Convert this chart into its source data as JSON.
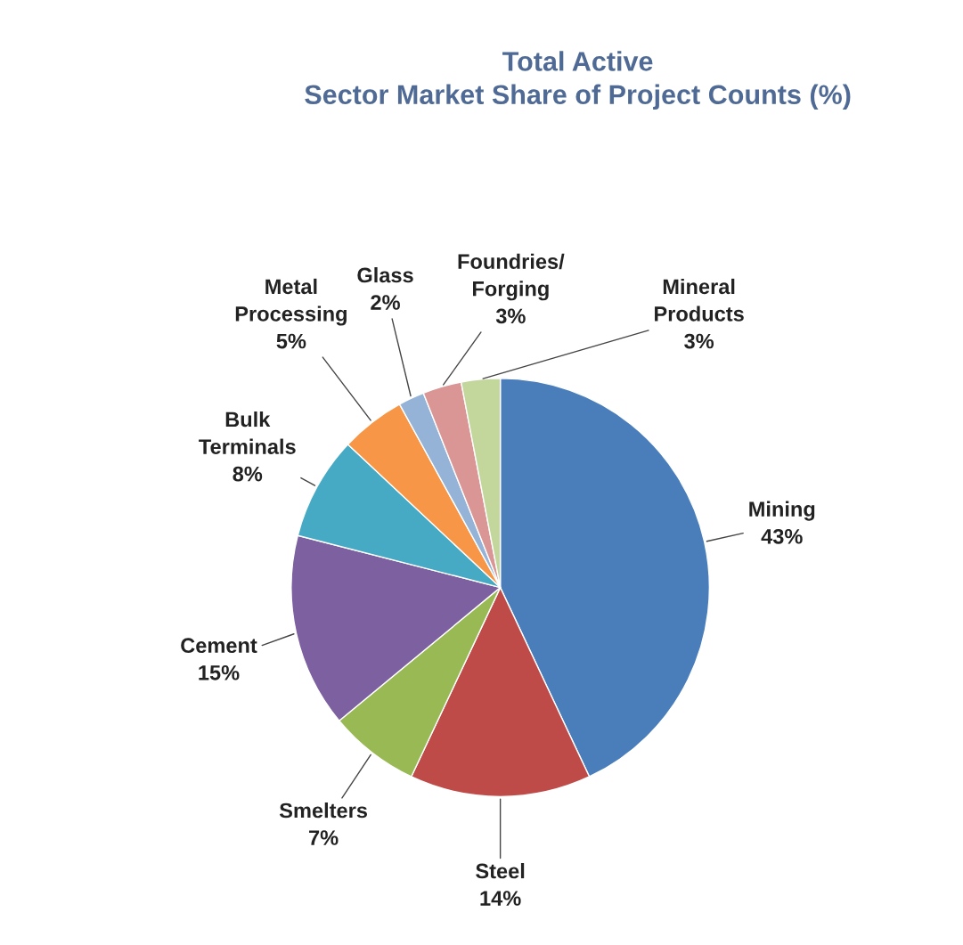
{
  "chart_data": {
    "type": "pie",
    "title": "Total Active\nSector Market Share of Project Counts (%)",
    "categories": [
      "Mining",
      "Steel",
      "Smelters",
      "Cement",
      "Bulk\nTerminals",
      "Metal\nProcessing",
      "Glass",
      "Foundries/\nForging",
      "Mineral\nProducts"
    ],
    "values": [
      43,
      14,
      7,
      15,
      8,
      5,
      2,
      3,
      3
    ],
    "value_labels": [
      "43%",
      "14%",
      "7%",
      "15%",
      "8%",
      "5%",
      "2%",
      "3%",
      "3%"
    ],
    "colors": [
      "#4a7ebb",
      "#be4b48",
      "#98b954",
      "#7d60a0",
      "#46aac5",
      "#f79646",
      "#95b3d7",
      "#d99694",
      "#c3d69b"
    ]
  }
}
